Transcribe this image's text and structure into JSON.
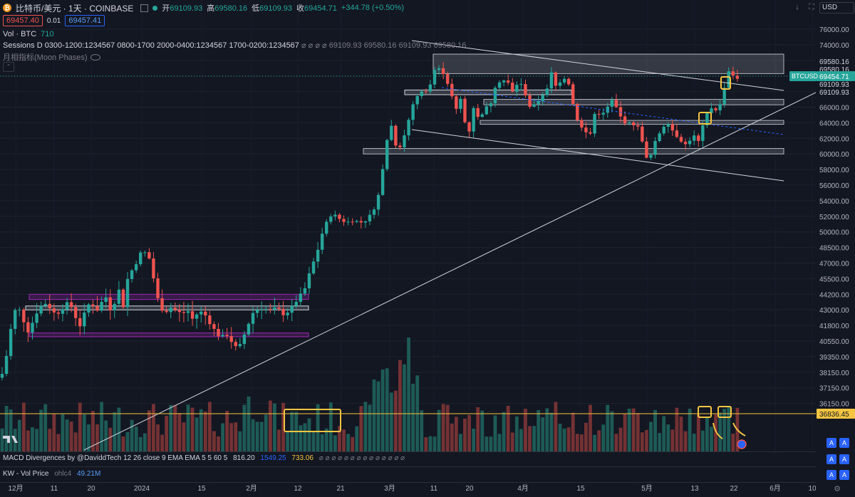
{
  "header": {
    "coin_glyph": "₿",
    "symbol_title": "比特币/美元 · 1天 · COINBASE",
    "ohlc": [
      {
        "label": "开",
        "value": "69109.93"
      },
      {
        "label": "高",
        "value": "69580.16"
      },
      {
        "label": "低",
        "value": "69109.93"
      },
      {
        "label": "收",
        "value": "69454.71"
      },
      {
        "label": "",
        "value": "+344.78 (+0.50%)"
      }
    ],
    "sell_price": "69457.40",
    "spread": "0.01",
    "buy_price": "69457.41",
    "vol_label": "Vol · BTC",
    "vol_value": "710",
    "sessions_label": "Sessions D 0300-1200:1234567 0800-1700 2000-0400:1234567 1700-0200:1234567",
    "sessions_values": "⌀ ⌀ ⌀ ⌀ 69109.93 69580.16 69109.93 69580.16",
    "moon_label": "月相指标(Moon Phases)",
    "collapse_glyph": "⌃"
  },
  "toolbar": {
    "down_arrow": "↓",
    "maximize": "⛶",
    "currency": "USD"
  },
  "indicators": {
    "macd_label": "MACD Divergences by @DaviddTech 12 26 close 9 EMA EMA 5 5 60 5",
    "macd_v1": "816.20",
    "macd_v2": "1549.25",
    "macd_v3": "733.06",
    "macd_tail": "⌀ ⌀ ⌀ ⌀ ⌀ ⌀ ⌀ ⌀ ⌀ ⌀ ⌀ ⌀ ⌀ ⌀",
    "kw_label": "KW - Vol Price",
    "kw_src": "ohlc4",
    "kw_value": "49.21M",
    "a_label": "A"
  },
  "chart_data": {
    "type": "candlestick",
    "axis": {
      "y_ticks": [
        "76000.00",
        "74000.00",
        "72000.00",
        "70000.00",
        "68000.00",
        "66000.00",
        "64000.00",
        "62000.00",
        "60000.00",
        "58000.00",
        "56000.00",
        "54000.00",
        "52000.00",
        "50000.00",
        "48500.00",
        "47000.00",
        "45500.00",
        "44200.00",
        "43000.00",
        "41800.00",
        "40550.00",
        "39350.00",
        "38150.00",
        "37150.00",
        "36150.00"
      ],
      "x_ticks": [
        "12月",
        "11",
        "20",
        "2024",
        "15",
        "2月",
        "12",
        "21",
        "3月",
        "11",
        "20",
        "4月",
        "15",
        "5月",
        "13",
        "22",
        "6月",
        "10"
      ]
    },
    "last_price_label": "69454.71",
    "symbol_tag": "BTCUSD",
    "price_labels": [
      "69580.16",
      "69580.16",
      "69109.93",
      "69109.93"
    ],
    "yellow_line_label": "36836.45",
    "zones": [
      {
        "y1": 72800,
        "y2": 70300,
        "color": "gray"
      },
      {
        "y1": 68200,
        "y2": 67600,
        "color": "white"
      },
      {
        "y1": 67000,
        "y2": 66300,
        "color": "gray"
      },
      {
        "y1": 64300,
        "y2": 63800,
        "color": "gray"
      },
      {
        "y1": 60700,
        "y2": 60000,
        "color": "gray"
      },
      {
        "y1": 44200,
        "y2": 43800,
        "color": "purple"
      },
      {
        "y1": 43300,
        "y2": 43000,
        "color": "white"
      },
      {
        "y1": 41200,
        "y2": 40900,
        "color": "purple"
      }
    ]
  }
}
